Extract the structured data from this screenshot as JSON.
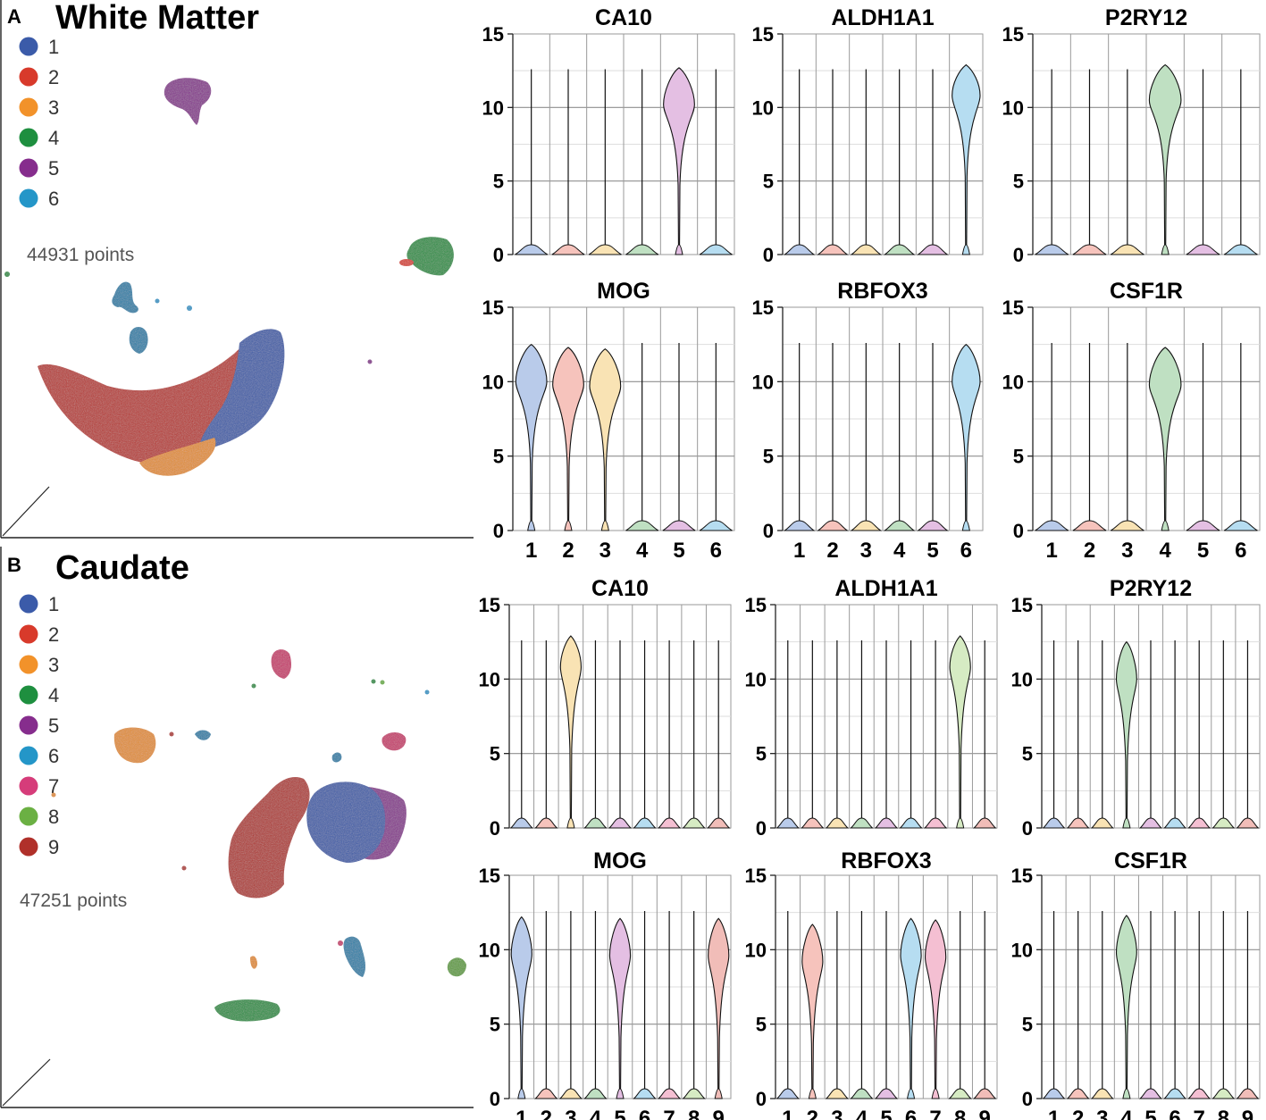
{
  "panels": [
    {
      "letter": "A",
      "title": "White Matter",
      "points_label": "44931 points",
      "legend": [
        {
          "label": "1",
          "color": "#3B5BA9"
        },
        {
          "label": "2",
          "color": "#D83A2B"
        },
        {
          "label": "3",
          "color": "#F2922A"
        },
        {
          "label": "4",
          "color": "#1E8F3F"
        },
        {
          "label": "5",
          "color": "#862D8D"
        },
        {
          "label": "6",
          "color": "#2496C8"
        }
      ]
    },
    {
      "letter": "B",
      "title": "Caudate",
      "points_label": "47251 points",
      "legend": [
        {
          "label": "1",
          "color": "#3B5BA9"
        },
        {
          "label": "2",
          "color": "#D83A2B"
        },
        {
          "label": "3",
          "color": "#F2922A"
        },
        {
          "label": "4",
          "color": "#1E8F3F"
        },
        {
          "label": "5",
          "color": "#862D8D"
        },
        {
          "label": "6",
          "color": "#2496C8"
        },
        {
          "label": "7",
          "color": "#D63C7A"
        },
        {
          "label": "8",
          "color": "#6BB043"
        },
        {
          "label": "9",
          "color": "#B0302A"
        }
      ]
    }
  ],
  "chart_data": [
    {
      "type": "violin",
      "panel": "A",
      "title": "CA10",
      "categories": [
        "1",
        "2",
        "3",
        "4",
        "5",
        "6"
      ],
      "y_ticks": [
        "0",
        "5",
        "10",
        "15"
      ],
      "ylim": [
        0,
        15
      ],
      "medians": [
        0,
        0,
        0,
        0,
        10.2,
        0
      ],
      "show_xticks": false
    },
    {
      "type": "violin",
      "panel": "A",
      "title": "ALDH1A1",
      "categories": [
        "1",
        "2",
        "3",
        "4",
        "5",
        "6"
      ],
      "y_ticks": [
        "0",
        "5",
        "10",
        "15"
      ],
      "ylim": [
        0,
        15
      ],
      "medians": [
        0,
        0,
        0,
        0,
        0,
        10.8
      ],
      "show_xticks": false
    },
    {
      "type": "violin",
      "panel": "A",
      "title": "P2RY12",
      "categories": [
        "1",
        "2",
        "3",
        "4",
        "5",
        "6"
      ],
      "y_ticks": [
        "0",
        "5",
        "10",
        "15"
      ],
      "ylim": [
        0,
        15
      ],
      "medians": [
        0,
        0,
        0,
        10.5,
        0,
        0
      ],
      "show_xticks": false
    },
    {
      "type": "violin",
      "panel": "A",
      "title": "MOG",
      "categories": [
        "1",
        "2",
        "3",
        "4",
        "5",
        "6"
      ],
      "y_ticks": [
        "0",
        "5",
        "10",
        "15"
      ],
      "ylim": [
        0,
        15
      ],
      "medians": [
        10.0,
        9.8,
        9.7,
        0,
        0,
        0
      ],
      "show_xticks": true
    },
    {
      "type": "violin",
      "panel": "A",
      "title": "RBFOX3",
      "categories": [
        "1",
        "2",
        "3",
        "4",
        "5",
        "6"
      ],
      "y_ticks": [
        "0",
        "5",
        "10",
        "15"
      ],
      "ylim": [
        0,
        15
      ],
      "medians": [
        0,
        0,
        0,
        0,
        0,
        10.0
      ],
      "show_xticks": true
    },
    {
      "type": "violin",
      "panel": "A",
      "title": "CSF1R",
      "categories": [
        "1",
        "2",
        "3",
        "4",
        "5",
        "6"
      ],
      "y_ticks": [
        "0",
        "5",
        "10",
        "15"
      ],
      "ylim": [
        0,
        15
      ],
      "medians": [
        0,
        0,
        0,
        9.8,
        0,
        0
      ],
      "show_xticks": true
    },
    {
      "type": "violin",
      "panel": "B",
      "title": "CA10",
      "categories": [
        "1",
        "2",
        "3",
        "4",
        "5",
        "6",
        "7",
        "8",
        "9"
      ],
      "y_ticks": [
        "0",
        "5",
        "10",
        "15"
      ],
      "ylim": [
        0,
        15
      ],
      "medians": [
        0,
        0,
        10.8,
        0,
        0,
        0,
        0,
        0,
        0
      ],
      "show_xticks": false
    },
    {
      "type": "violin",
      "panel": "B",
      "title": "ALDH1A1",
      "categories": [
        "1",
        "2",
        "3",
        "4",
        "5",
        "6",
        "7",
        "8",
        "9"
      ],
      "y_ticks": [
        "0",
        "5",
        "10",
        "15"
      ],
      "ylim": [
        0,
        15
      ],
      "medians": [
        0,
        0,
        0,
        0,
        0,
        0,
        0,
        10.8,
        0
      ],
      "show_xticks": false
    },
    {
      "type": "violin",
      "panel": "B",
      "title": "P2RY12",
      "categories": [
        "1",
        "2",
        "3",
        "4",
        "5",
        "6",
        "7",
        "8",
        "9"
      ],
      "y_ticks": [
        "0",
        "5",
        "10",
        "15"
      ],
      "ylim": [
        0,
        15
      ],
      "medians": [
        0,
        0,
        0,
        10.0,
        0,
        0,
        0,
        0,
        0
      ],
      "show_xticks": false
    },
    {
      "type": "violin",
      "panel": "B",
      "title": "MOG",
      "categories": [
        "1",
        "2",
        "3",
        "4",
        "5",
        "6",
        "7",
        "8",
        "9"
      ],
      "y_ticks": [
        "0",
        "5",
        "10",
        "15"
      ],
      "ylim": [
        0,
        15
      ],
      "medians": [
        9.7,
        0,
        0,
        0,
        9.6,
        0,
        0,
        0,
        9.6
      ],
      "show_xticks": true
    },
    {
      "type": "violin",
      "panel": "B",
      "title": "RBFOX3",
      "categories": [
        "1",
        "2",
        "3",
        "4",
        "5",
        "6",
        "7",
        "8",
        "9"
      ],
      "y_ticks": [
        "0",
        "5",
        "10",
        "15"
      ],
      "ylim": [
        0,
        15
      ],
      "medians": [
        0,
        9.2,
        0,
        0,
        0,
        9.6,
        9.5,
        0,
        0
      ],
      "show_xticks": true
    },
    {
      "type": "violin",
      "panel": "B",
      "title": "CSF1R",
      "categories": [
        "1",
        "2",
        "3",
        "4",
        "5",
        "6",
        "7",
        "8",
        "9"
      ],
      "y_ticks": [
        "0",
        "5",
        "10",
        "15"
      ],
      "ylim": [
        0,
        15
      ],
      "medians": [
        0,
        0,
        0,
        9.8,
        0,
        0,
        0,
        0,
        0
      ],
      "show_xticks": true
    }
  ]
}
